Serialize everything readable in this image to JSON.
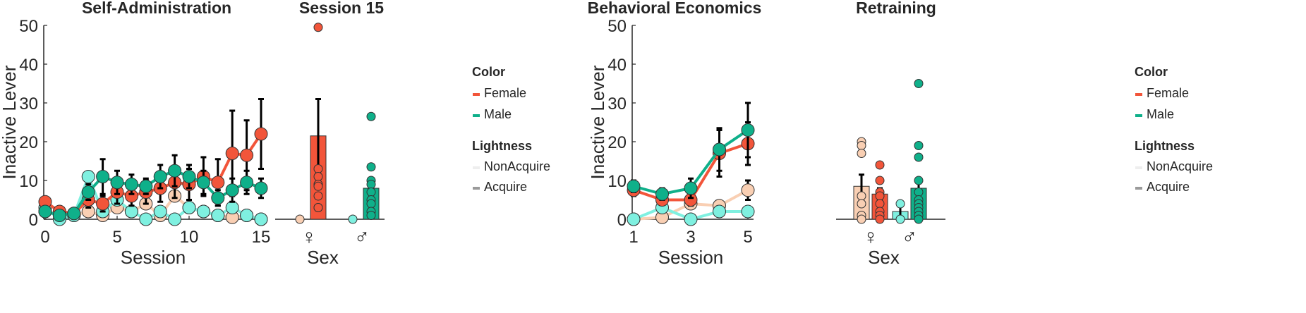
{
  "colors": {
    "female": "#f2553a",
    "female_light": "#f9cfb3",
    "male": "#0fb08a",
    "male_light": "#7ff0e0",
    "axis": "#262626",
    "errorbar": "#000000"
  },
  "chart_data": [
    {
      "type": "line",
      "title": "Self-Administration",
      "xlabel": "Session",
      "ylabel": "Inactive Lever",
      "xlim": [
        0,
        15
      ],
      "ylim": [
        0,
        50
      ],
      "xticks": [
        0,
        5,
        10,
        15
      ],
      "yticks": [
        0,
        10,
        20,
        30,
        40,
        50
      ],
      "grid": false,
      "series": [
        {
          "color": "female_light",
          "x": [
            0,
            1,
            2,
            3,
            4,
            5,
            6,
            7,
            8,
            9,
            10,
            11,
            12,
            13,
            14,
            15
          ],
          "y": [
            2,
            1.5,
            1,
            2,
            1,
            3,
            2,
            4,
            1,
            6,
            3,
            2,
            1,
            0.5,
            1,
            0
          ],
          "err": [
            null,
            null,
            null,
            null,
            null,
            null,
            null,
            null,
            null,
            null,
            null,
            null,
            null,
            null,
            null,
            null
          ]
        },
        {
          "color": "male_light",
          "x": [
            0,
            1,
            2,
            3,
            4,
            5,
            6,
            7,
            8,
            9,
            10,
            11,
            12,
            13,
            14,
            15
          ],
          "y": [
            3,
            0,
            1,
            11,
            2,
            5,
            2,
            0,
            2,
            0,
            3,
            2,
            1,
            3,
            1,
            0
          ],
          "err": [
            null,
            null,
            null,
            null,
            null,
            null,
            null,
            null,
            null,
            null,
            null,
            null,
            null,
            null,
            null,
            null
          ]
        },
        {
          "color": "female",
          "x": [
            0,
            1,
            2,
            3,
            4,
            5,
            6,
            7,
            8,
            9,
            10,
            11,
            12,
            13,
            14,
            15
          ],
          "y": [
            4.5,
            2,
            1.5,
            5,
            4,
            7,
            6,
            7,
            8,
            9.5,
            9,
            11,
            9.5,
            17,
            16.5,
            22
          ],
          "err": [
            1,
            0.8,
            0.6,
            2,
            2,
            3,
            2.5,
            3,
            3.5,
            4,
            4,
            5,
            6,
            11,
            9,
            9
          ]
        },
        {
          "color": "male",
          "x": [
            0,
            1,
            2,
            3,
            4,
            5,
            6,
            7,
            8,
            9,
            10,
            11,
            12,
            13,
            14,
            15
          ],
          "y": [
            2,
            1,
            1.5,
            7,
            11,
            9.5,
            9,
            8.5,
            11,
            12.5,
            11,
            9.5,
            5.5,
            7.5,
            9.5,
            8
          ],
          "err": [
            1,
            0.5,
            0.5,
            2,
            4.5,
            3,
            2.5,
            2,
            3,
            4,
            3,
            3,
            2,
            3,
            3,
            2.5
          ]
        }
      ]
    },
    {
      "type": "bar",
      "title": "Session 15",
      "xlabel": "Sex",
      "ylim": [
        0,
        50
      ],
      "categories": [
        "♀",
        "♂"
      ],
      "bars": [
        {
          "cat": 0,
          "color": "female_light",
          "value": 0,
          "points": [
            0
          ]
        },
        {
          "cat": 0,
          "color": "female",
          "value": 21.5,
          "err": 9.5,
          "points": [
            49.5,
            13,
            11,
            9,
            8.5,
            6,
            3,
            3
          ]
        },
        {
          "cat": 1,
          "color": "male_light",
          "value": 0,
          "points": [
            0
          ]
        },
        {
          "cat": 1,
          "color": "male",
          "value": 8,
          "err": 2.5,
          "points": [
            26.5,
            13.5,
            10,
            9,
            7,
            5,
            4,
            2,
            1
          ]
        }
      ]
    },
    {
      "type": "line",
      "title": "Behavioral Economics",
      "xlabel": "Session",
      "ylabel": "Inactive Lever",
      "xlim": [
        1,
        5
      ],
      "ylim": [
        0,
        50
      ],
      "xticks": [
        1,
        3,
        5
      ],
      "yticks": [
        0,
        10,
        20,
        30,
        40,
        50
      ],
      "grid": false,
      "series": [
        {
          "color": "female_light",
          "x": [
            1,
            2,
            3,
            4,
            5
          ],
          "y": [
            0,
            0.5,
            4,
            3.5,
            7.5
          ],
          "err": [
            null,
            null,
            1,
            null,
            2.5
          ]
        },
        {
          "color": "male_light",
          "x": [
            1,
            2,
            3,
            4,
            5
          ],
          "y": [
            0,
            3,
            0,
            2,
            2
          ],
          "err": [
            null,
            null,
            null,
            null,
            null
          ]
        },
        {
          "color": "female",
          "x": [
            1,
            2,
            3,
            4,
            5
          ],
          "y": [
            7.5,
            5,
            5,
            17,
            19.5
          ],
          "err": [
            1.5,
            1,
            1.5,
            6,
            5.5
          ]
        },
        {
          "color": "male",
          "x": [
            1,
            2,
            3,
            4,
            5
          ],
          "y": [
            8.5,
            6.5,
            8,
            18,
            23
          ],
          "err": [
            1.5,
            1.5,
            2.5,
            5.5,
            7
          ]
        }
      ]
    },
    {
      "type": "bar",
      "title": "Retraining",
      "xlabel": "Sex",
      "ylim": [
        0,
        50
      ],
      "categories": [
        "♀",
        "♂"
      ],
      "bars": [
        {
          "cat": 0,
          "color": "female_light",
          "value": 8.5,
          "err": 3,
          "points": [
            20,
            19,
            17,
            6,
            4,
            1,
            0
          ]
        },
        {
          "cat": 0,
          "color": "female",
          "value": 6.5,
          "err": 1.5,
          "points": [
            14,
            10,
            7,
            6,
            4,
            2,
            1,
            0
          ]
        },
        {
          "cat": 1,
          "color": "male_light",
          "value": 2,
          "err": 2,
          "points": [
            4,
            0
          ]
        },
        {
          "cat": 1,
          "color": "male",
          "value": 8,
          "err": 2.5,
          "points": [
            35,
            19,
            16,
            10,
            7,
            5,
            4,
            3,
            2,
            1,
            0
          ]
        }
      ]
    }
  ],
  "legends": [
    {
      "color_title": "Color",
      "color_items": [
        {
          "label": "Female",
          "color": "female"
        },
        {
          "label": "Male",
          "color": "male"
        }
      ],
      "lightness_title": "Lightness",
      "lightness_items": [
        {
          "label": "NonAcquire",
          "color": "#eeeeee"
        },
        {
          "label": "Acquire",
          "color": "#9a9a9a"
        }
      ]
    },
    {
      "color_title": "Color",
      "color_items": [
        {
          "label": "Female",
          "color": "female"
        },
        {
          "label": "Male",
          "color": "male"
        }
      ],
      "lightness_title": "Lightness",
      "lightness_items": [
        {
          "label": "NonAcquire",
          "color": "#eeeeee"
        },
        {
          "label": "Acquire",
          "color": "#9a9a9a"
        }
      ]
    }
  ]
}
